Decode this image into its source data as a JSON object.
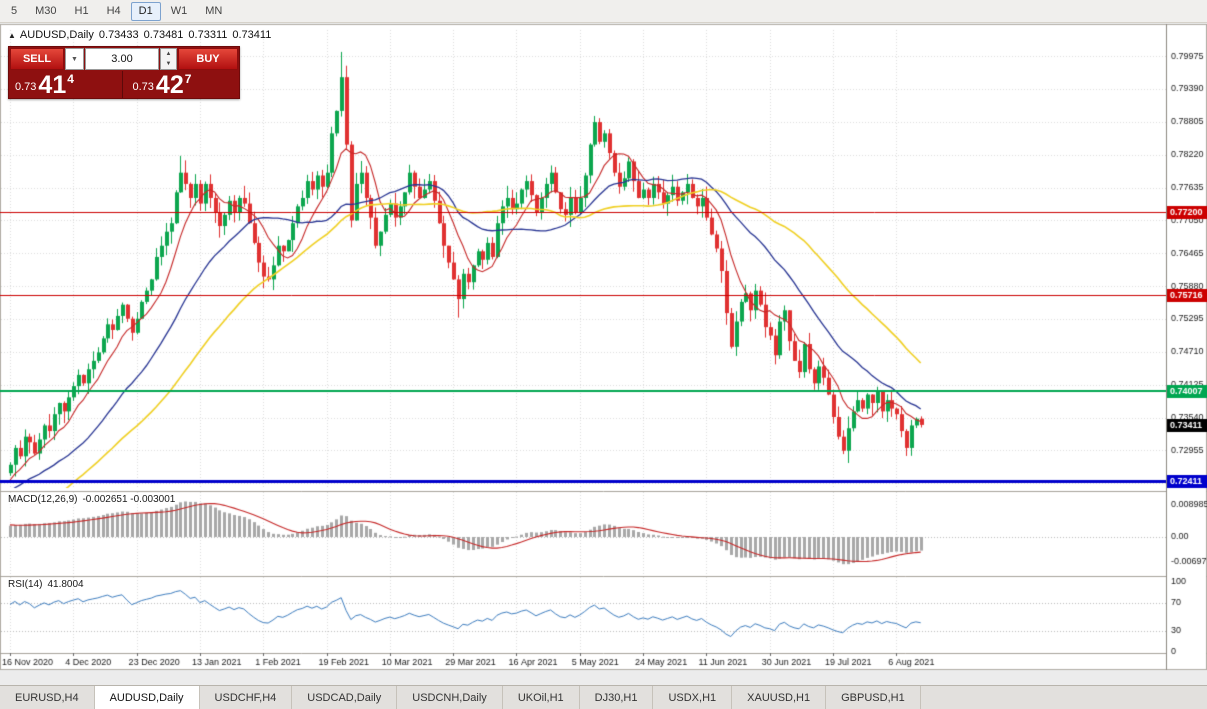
{
  "toolbar": {
    "timeframes": [
      {
        "label": "5",
        "selected": false
      },
      {
        "label": "M30",
        "selected": false
      },
      {
        "label": "H1",
        "selected": false
      },
      {
        "label": "H4",
        "selected": false
      },
      {
        "label": "D1",
        "selected": true
      },
      {
        "label": "W1",
        "selected": false
      },
      {
        "label": "MN",
        "selected": false
      }
    ]
  },
  "ohlc_line": {
    "symbol": "AUDUSD,Daily",
    "open": "0.73433",
    "high": "0.73481",
    "low": "0.73311",
    "close": "0.73411"
  },
  "trade_panel": {
    "sell_label": "SELL",
    "buy_label": "BUY",
    "volume": "3.00",
    "sell_price": {
      "prefix": "0.73",
      "big": "41",
      "sup": "4"
    },
    "buy_price": {
      "prefix": "0.73",
      "big": "42",
      "sup": "7"
    }
  },
  "price_axis": {
    "ticks": [
      "0.79975",
      "0.79390",
      "0.78805",
      "0.78220",
      "0.77635",
      "0.77050",
      "0.76465",
      "0.75880",
      "0.75295",
      "0.74710",
      "0.74125",
      "0.73540",
      "0.72955",
      "0.72370"
    ]
  },
  "horizontal_lines": [
    {
      "price": 0.772,
      "label": "0.77200",
      "color": "#cc0000",
      "width": 1
    },
    {
      "price": 0.75716,
      "label": "0.75716",
      "color": "#cc0000",
      "width": 1
    },
    {
      "price": 0.74007,
      "label": "0.74007",
      "color": "#00a651",
      "width": 2
    },
    {
      "price": 0.72411,
      "label": "0.72411",
      "color": "#0000cc",
      "width": 3
    }
  ],
  "current_price": {
    "value": 0.73411,
    "label": "0.73411",
    "color": "#000000"
  },
  "date_axis": {
    "labels": [
      {
        "bar": 0,
        "text": "16 Nov 2020"
      },
      {
        "bar": 13,
        "text": "4 Dec 2020"
      },
      {
        "bar": 26,
        "text": "23 Dec 2020"
      },
      {
        "bar": 39,
        "text": "13 Jan 2021"
      },
      {
        "bar": 52,
        "text": "1 Feb 2021"
      },
      {
        "bar": 65,
        "text": "19 Feb 2021"
      },
      {
        "bar": 78,
        "text": "10 Mar 2021"
      },
      {
        "bar": 91,
        "text": "29 Mar 2021"
      },
      {
        "bar": 104,
        "text": "16 Apr 2021"
      },
      {
        "bar": 117,
        "text": "5 May 2021"
      },
      {
        "bar": 130,
        "text": "24 May 2021"
      },
      {
        "bar": 143,
        "text": "11 Jun 2021"
      },
      {
        "bar": 156,
        "text": "30 Jun 2021"
      },
      {
        "bar": 169,
        "text": "19 Jul 2021"
      },
      {
        "bar": 182,
        "text": "6 Aug 2021"
      }
    ]
  },
  "macd_panel": {
    "title": "MACD(12,26,9)",
    "value_text": "-0.002651 -0.003001",
    "axis_ticks": [
      {
        "value": 0.008985,
        "label": "0.008985"
      },
      {
        "value": 0,
        "label": "0.00"
      },
      {
        "value": -0.00697,
        "label": "-0.00697"
      }
    ],
    "params": {
      "fast": 12,
      "slow": 26,
      "signal": 9
    }
  },
  "rsi_panel": {
    "title": "RSI(14)",
    "value_text": "41.8004",
    "period": 14,
    "levels": [
      70,
      30
    ],
    "axis_ticks": [
      {
        "value": 100,
        "label": "100"
      },
      {
        "value": 70,
        "label": "70"
      },
      {
        "value": 30,
        "label": "30"
      },
      {
        "value": 0,
        "label": "0"
      }
    ]
  },
  "tabs": [
    {
      "label": "EURUSD,H4",
      "active": false
    },
    {
      "label": "AUDUSD,Daily",
      "active": true
    },
    {
      "label": "USDCHF,H4",
      "active": false
    },
    {
      "label": "USDCAD,Daily",
      "active": false
    },
    {
      "label": "USDCNH,Daily",
      "active": false
    },
    {
      "label": "UKOil,H1",
      "active": false
    },
    {
      "label": "DJ30,H1",
      "active": false
    },
    {
      "label": "USDX,H1",
      "active": false
    },
    {
      "label": "XAUUSD,H1",
      "active": false
    },
    {
      "label": "GBPUSD,H1",
      "active": false
    }
  ],
  "colors": {
    "up": "#0ca64e",
    "down": "#e03131",
    "ma_fast": "#c62828",
    "ma_mid": "#283593",
    "ma_slow": "#f0d024",
    "macd_hist": "#a8a8a8",
    "macd_signal": "#c62828",
    "rsi": "#3d7dbf"
  },
  "chart_data": {
    "type": "candlestick",
    "symbol": "AUDUSD",
    "timeframe": "Daily",
    "last_ohlc": {
      "open": 0.73433,
      "high": 0.73481,
      "low": 0.73311,
      "close": 0.73411
    },
    "moving_averages": [
      {
        "period": 8,
        "color_key": "ma_fast"
      },
      {
        "period": 24,
        "color_key": "ma_mid"
      },
      {
        "period": 45,
        "color_key": "ma_slow"
      }
    ],
    "warmup_closes": [
      0.702,
      0.7035,
      0.7025,
      0.705,
      0.706,
      0.7045,
      0.707,
      0.7085,
      0.7075,
      0.71,
      0.711,
      0.7095,
      0.712,
      0.7135,
      0.7125,
      0.715,
      0.716,
      0.7145,
      0.717,
      0.7185,
      0.7175,
      0.72,
      0.721,
      0.7195,
      0.7215,
      0.723,
      0.722,
      0.724,
      0.725,
      0.7235,
      0.7255,
      0.7245,
      0.723,
      0.721,
      0.7225,
      0.724,
      0.723,
      0.725,
      0.726,
      0.7255
    ],
    "closes": [
      0.727,
      0.73,
      0.7285,
      0.732,
      0.731,
      0.729,
      0.7315,
      0.734,
      0.733,
      0.736,
      0.738,
      0.7365,
      0.739,
      0.741,
      0.743,
      0.7415,
      0.744,
      0.7455,
      0.747,
      0.7495,
      0.752,
      0.751,
      0.7535,
      0.7555,
      0.753,
      0.7505,
      0.753,
      0.756,
      0.758,
      0.76,
      0.764,
      0.766,
      0.7685,
      0.77,
      0.7755,
      0.779,
      0.777,
      0.7745,
      0.777,
      0.7735,
      0.777,
      0.7745,
      0.772,
      0.7695,
      0.7715,
      0.774,
      0.772,
      0.7745,
      0.7735,
      0.77,
      0.7665,
      0.763,
      0.7605,
      0.76,
      0.7625,
      0.766,
      0.765,
      0.767,
      0.77,
      0.773,
      0.7745,
      0.7775,
      0.776,
      0.7785,
      0.7765,
      0.779,
      0.786,
      0.79,
      0.796,
      0.784,
      0.7705,
      0.777,
      0.779,
      0.7745,
      0.771,
      0.766,
      0.7685,
      0.7715,
      0.7735,
      0.771,
      0.773,
      0.7755,
      0.779,
      0.7765,
      0.7745,
      0.776,
      0.7775,
      0.774,
      0.77,
      0.766,
      0.763,
      0.76,
      0.7565,
      0.761,
      0.7595,
      0.7625,
      0.765,
      0.7635,
      0.7665,
      0.764,
      0.77,
      0.773,
      0.7745,
      0.7725,
      0.7735,
      0.776,
      0.7775,
      0.775,
      0.772,
      0.7745,
      0.777,
      0.779,
      0.7755,
      0.7725,
      0.7715,
      0.7745,
      0.772,
      0.7745,
      0.7785,
      0.784,
      0.788,
      0.7845,
      0.786,
      0.7825,
      0.779,
      0.7765,
      0.778,
      0.781,
      0.7775,
      0.7745,
      0.776,
      0.7745,
      0.777,
      0.7755,
      0.7735,
      0.775,
      0.7765,
      0.774,
      0.7755,
      0.777,
      0.7745,
      0.773,
      0.7745,
      0.771,
      0.768,
      0.7655,
      0.7615,
      0.754,
      0.748,
      0.7525,
      0.756,
      0.7575,
      0.7545,
      0.758,
      0.7555,
      0.7515,
      0.75,
      0.7465,
      0.7525,
      0.7545,
      0.749,
      0.7455,
      0.7435,
      0.7485,
      0.744,
      0.7415,
      0.7445,
      0.7425,
      0.7395,
      0.7355,
      0.732,
      0.7295,
      0.7335,
      0.7365,
      0.7385,
      0.737,
      0.7395,
      0.738,
      0.74,
      0.7365,
      0.7385,
      0.737,
      0.736,
      0.733,
      0.73,
      0.734,
      0.7352,
      0.7341
    ],
    "high_overrides": {
      "35": 0.782,
      "68": 0.8005,
      "120": 0.7891
    },
    "low_overrides": {
      "92": 0.7532,
      "171": 0.7289
    }
  }
}
